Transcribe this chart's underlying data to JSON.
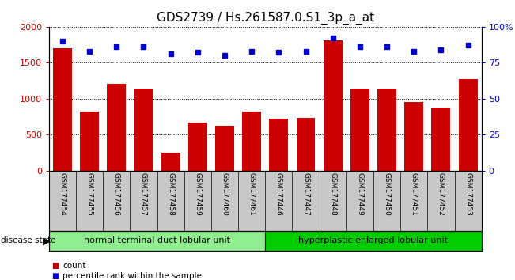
{
  "title": "GDS2739 / Hs.261587.0.S1_3p_a_at",
  "samples": [
    "GSM177454",
    "GSM177455",
    "GSM177456",
    "GSM177457",
    "GSM177458",
    "GSM177459",
    "GSM177460",
    "GSM177461",
    "GSM177446",
    "GSM177447",
    "GSM177448",
    "GSM177449",
    "GSM177450",
    "GSM177451",
    "GSM177452",
    "GSM177453"
  ],
  "counts": [
    1700,
    820,
    1210,
    1140,
    250,
    670,
    620,
    820,
    720,
    730,
    1810,
    1140,
    1140,
    950,
    880,
    1270
  ],
  "percentiles": [
    90,
    83,
    86,
    86,
    81,
    82,
    80,
    83,
    82,
    83,
    92,
    86,
    86,
    83,
    84,
    87
  ],
  "group1_label": "normal terminal duct lobular unit",
  "group2_label": "hyperplastic enlarged lobular unit",
  "group1_count": 8,
  "group2_count": 8,
  "bar_color": "#cc0000",
  "dot_color": "#0000cc",
  "group1_color": "#90ee90",
  "group2_color": "#00cc00",
  "ylim_left": [
    0,
    2000
  ],
  "ylim_right": [
    0,
    100
  ],
  "yticks_left": [
    0,
    500,
    1000,
    1500,
    2000
  ],
  "yticks_right": [
    0,
    25,
    50,
    75,
    100
  ],
  "background_color": "#ffffff",
  "tick_area_color": "#c8c8c8",
  "title_fontsize": 11,
  "legend_label_count": "count",
  "legend_label_percentile": "percentile rank within the sample"
}
